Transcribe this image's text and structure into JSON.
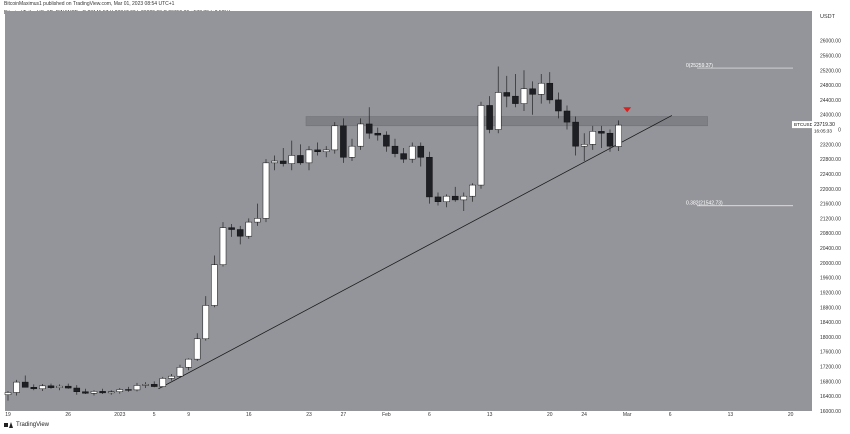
{
  "header": {
    "published_line": "BitcoinMaximus1 published on TradingView.com, Mar 01, 2023 08:54 UTC+1",
    "symbol_line": "Bitcoin / TetherUS, 1D, BINANCE",
    "ohlc": "O 23141.57  H 23847.00  L 23020.03  C 23719.30  +577.73 (+2.50%)"
  },
  "footer": {
    "brand": "TradingView"
  },
  "colors": {
    "background": "#94959a",
    "bull": "#ffffff",
    "bear": "#1e1f24",
    "resistance_zone": "#7f8086",
    "trendline": "#1a1a1a",
    "marker": "#d8201e"
  },
  "chart_data": {
    "type": "candlestick",
    "ylabel": "USDT",
    "ylim": [
      16000,
      26800
    ],
    "y_ticks": [
      16000,
      16400,
      16800,
      17200,
      17600,
      18000,
      18400,
      18800,
      19200,
      19600,
      20000,
      20400,
      20800,
      21200,
      21600,
      22000,
      22400,
      22800,
      23200,
      23600,
      24000,
      24400,
      24800,
      25200,
      25600,
      26000
    ],
    "x_ticks": [
      {
        "label": "19",
        "index": 0
      },
      {
        "label": "26",
        "index": 7
      },
      {
        "label": "2023",
        "index": 13
      },
      {
        "label": "5",
        "index": 17
      },
      {
        "label": "9",
        "index": 21
      },
      {
        "label": "16",
        "index": 28
      },
      {
        "label": "23",
        "index": 35
      },
      {
        "label": "27",
        "index": 39
      },
      {
        "label": "Feb",
        "index": 44
      },
      {
        "label": "6",
        "index": 49
      },
      {
        "label": "13",
        "index": 56
      },
      {
        "label": "20",
        "index": 63
      },
      {
        "label": "24",
        "index": 67
      },
      {
        "label": "Mar",
        "index": 72
      },
      {
        "label": "6",
        "index": 77
      },
      {
        "label": "13",
        "index": 84
      },
      {
        "label": "20",
        "index": 91
      }
    ],
    "candles": [
      {
        "o": 16440,
        "h": 16540,
        "l": 16280,
        "c": 16500
      },
      {
        "o": 16500,
        "h": 16840,
        "l": 16420,
        "c": 16780
      },
      {
        "o": 16780,
        "h": 16960,
        "l": 16640,
        "c": 16640
      },
      {
        "o": 16640,
        "h": 16720,
        "l": 16560,
        "c": 16600
      },
      {
        "o": 16600,
        "h": 16730,
        "l": 16540,
        "c": 16680
      },
      {
        "o": 16680,
        "h": 16740,
        "l": 16600,
        "c": 16630
      },
      {
        "o": 16630,
        "h": 16720,
        "l": 16560,
        "c": 16670
      },
      {
        "o": 16670,
        "h": 16740,
        "l": 16600,
        "c": 16620
      },
      {
        "o": 16620,
        "h": 16700,
        "l": 16440,
        "c": 16520
      },
      {
        "o": 16520,
        "h": 16600,
        "l": 16460,
        "c": 16480
      },
      {
        "o": 16480,
        "h": 16560,
        "l": 16420,
        "c": 16530
      },
      {
        "o": 16530,
        "h": 16600,
        "l": 16460,
        "c": 16490
      },
      {
        "o": 16490,
        "h": 16560,
        "l": 16440,
        "c": 16520
      },
      {
        "o": 16520,
        "h": 16620,
        "l": 16470,
        "c": 16580
      },
      {
        "o": 16580,
        "h": 16650,
        "l": 16520,
        "c": 16570
      },
      {
        "o": 16570,
        "h": 16760,
        "l": 16530,
        "c": 16690
      },
      {
        "o": 16690,
        "h": 16780,
        "l": 16620,
        "c": 16720
      },
      {
        "o": 16720,
        "h": 16800,
        "l": 16640,
        "c": 16660
      },
      {
        "o": 16660,
        "h": 16920,
        "l": 16640,
        "c": 16880
      },
      {
        "o": 16880,
        "h": 17000,
        "l": 16820,
        "c": 16940
      },
      {
        "o": 16940,
        "h": 17250,
        "l": 16900,
        "c": 17180
      },
      {
        "o": 17180,
        "h": 17420,
        "l": 17100,
        "c": 17400
      },
      {
        "o": 17400,
        "h": 18100,
        "l": 17350,
        "c": 17950
      },
      {
        "o": 17950,
        "h": 19100,
        "l": 17900,
        "c": 18850
      },
      {
        "o": 18850,
        "h": 20200,
        "l": 18800,
        "c": 19950
      },
      {
        "o": 19950,
        "h": 21100,
        "l": 19900,
        "c": 20950
      },
      {
        "o": 20950,
        "h": 21050,
        "l": 20700,
        "c": 20900
      },
      {
        "o": 20900,
        "h": 21000,
        "l": 20500,
        "c": 20720
      },
      {
        "o": 20720,
        "h": 21200,
        "l": 20650,
        "c": 21100
      },
      {
        "o": 21100,
        "h": 21600,
        "l": 21000,
        "c": 21200
      },
      {
        "o": 21200,
        "h": 22800,
        "l": 21100,
        "c": 22700
      },
      {
        "o": 22700,
        "h": 22900,
        "l": 22500,
        "c": 22750
      },
      {
        "o": 22750,
        "h": 23100,
        "l": 22600,
        "c": 22680
      },
      {
        "o": 22680,
        "h": 23300,
        "l": 22500,
        "c": 22900
      },
      {
        "o": 22900,
        "h": 23200,
        "l": 22650,
        "c": 22700
      },
      {
        "o": 22700,
        "h": 23150,
        "l": 22500,
        "c": 23050
      },
      {
        "o": 23050,
        "h": 23250,
        "l": 22900,
        "c": 23000
      },
      {
        "o": 23000,
        "h": 23150,
        "l": 22850,
        "c": 23050
      },
      {
        "o": 23050,
        "h": 23800,
        "l": 22950,
        "c": 23700
      },
      {
        "o": 23700,
        "h": 23900,
        "l": 22700,
        "c": 22850
      },
      {
        "o": 22850,
        "h": 23350,
        "l": 22750,
        "c": 23150
      },
      {
        "o": 23150,
        "h": 23900,
        "l": 23050,
        "c": 23750
      },
      {
        "o": 23750,
        "h": 24200,
        "l": 23350,
        "c": 23500
      },
      {
        "o": 23500,
        "h": 23650,
        "l": 23300,
        "c": 23450
      },
      {
        "o": 23450,
        "h": 23550,
        "l": 23000,
        "c": 23150
      },
      {
        "o": 23150,
        "h": 23350,
        "l": 22850,
        "c": 22950
      },
      {
        "o": 22950,
        "h": 23100,
        "l": 22700,
        "c": 22800
      },
      {
        "o": 22800,
        "h": 23250,
        "l": 22700,
        "c": 23150
      },
      {
        "o": 23150,
        "h": 23250,
        "l": 22600,
        "c": 22850
      },
      {
        "o": 22850,
        "h": 23000,
        "l": 21600,
        "c": 21780
      },
      {
        "o": 21780,
        "h": 21900,
        "l": 21550,
        "c": 21650
      },
      {
        "o": 21650,
        "h": 21850,
        "l": 21500,
        "c": 21800
      },
      {
        "o": 21800,
        "h": 22050,
        "l": 21650,
        "c": 21700
      },
      {
        "o": 21700,
        "h": 21900,
        "l": 21400,
        "c": 21800
      },
      {
        "o": 21800,
        "h": 22150,
        "l": 21650,
        "c": 22100
      },
      {
        "o": 22100,
        "h": 24350,
        "l": 22000,
        "c": 24250
      },
      {
        "o": 24250,
        "h": 24500,
        "l": 23500,
        "c": 23600
      },
      {
        "o": 23600,
        "h": 25300,
        "l": 23500,
        "c": 24600
      },
      {
        "o": 24600,
        "h": 25050,
        "l": 24200,
        "c": 24500
      },
      {
        "o": 24500,
        "h": 25100,
        "l": 24200,
        "c": 24300
      },
      {
        "o": 24300,
        "h": 25200,
        "l": 24100,
        "c": 24700
      },
      {
        "o": 24700,
        "h": 24900,
        "l": 24000,
        "c": 24550
      },
      {
        "o": 24550,
        "h": 25100,
        "l": 24300,
        "c": 24850
      },
      {
        "o": 24850,
        "h": 25150,
        "l": 24300,
        "c": 24400
      },
      {
        "o": 24400,
        "h": 24600,
        "l": 23900,
        "c": 24100
      },
      {
        "o": 24100,
        "h": 24250,
        "l": 23600,
        "c": 23800
      },
      {
        "o": 23800,
        "h": 23950,
        "l": 22900,
        "c": 23150
      },
      {
        "o": 23150,
        "h": 23500,
        "l": 22750,
        "c": 23200
      },
      {
        "o": 23200,
        "h": 23700,
        "l": 23050,
        "c": 23550
      },
      {
        "o": 23550,
        "h": 23700,
        "l": 23100,
        "c": 23500
      },
      {
        "o": 23500,
        "h": 23600,
        "l": 23000,
        "c": 23150
      },
      {
        "o": 23141.57,
        "h": 23847,
        "l": 23020.03,
        "c": 23719.3
      }
    ],
    "resistance_zone": {
      "from": 23700,
      "to": 23950,
      "start_index": 35,
      "end_index": 81
    },
    "trendline": {
      "x1": 17.5,
      "y1": 16600,
      "x2": 77.2,
      "y2": 23980
    },
    "fib_levels": [
      {
        "label": "0(25259.37)",
        "value": 25259.37
      },
      {
        "label": "0.382(21542.73)",
        "value": 21542.73
      }
    ],
    "current_price": {
      "symbol": "BTCUSDT",
      "price": "23719.30",
      "countdown": "16:05:33",
      "value": 23719.3
    },
    "bearish_marker": {
      "index": 72,
      "value": 24120
    }
  }
}
